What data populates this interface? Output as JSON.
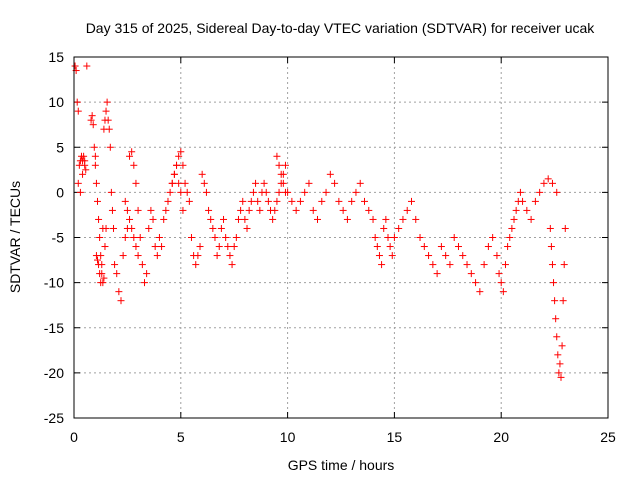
{
  "chart_data": {
    "type": "scatter",
    "title": "Day 315 of 2025, Sidereal Day-to-day VTEC variation (SDTVAR) for receiver ucak",
    "xlabel": "GPS time / hours",
    "ylabel": "SDTVAR / TECUs",
    "xlim": [
      0,
      25
    ],
    "ylim": [
      -25,
      15
    ],
    "xticks": [
      0,
      5,
      10,
      15,
      20,
      25
    ],
    "yticks": [
      15,
      10,
      5,
      0,
      -5,
      -10,
      -15,
      -20,
      -25
    ],
    "grid": true,
    "marker": "+",
    "marker_color": "#ff0000",
    "series": [
      {
        "name": "SDTVAR",
        "x": [
          0.05,
          0.1,
          0.15,
          0.2,
          0.25,
          0.3,
          0.35,
          0.4,
          0.45,
          0.5,
          0.55,
          0.6,
          0.2,
          0.3,
          0.4,
          0.5,
          0.8,
          0.85,
          0.9,
          0.95,
          1.0,
          1.05,
          1.1,
          1.15,
          1.2,
          1.25,
          1.3,
          1.35,
          1.4,
          1.45,
          1.5,
          1.55,
          1.6,
          1.65,
          1.7,
          1.75,
          1.8,
          1.85,
          1.9,
          1.0,
          1.05,
          1.1,
          1.15,
          1.2,
          1.25,
          1.3,
          1.35,
          1.4,
          1.45,
          1.5,
          2.0,
          2.1,
          2.2,
          2.3,
          2.4,
          2.5,
          2.6,
          2.7,
          2.8,
          2.9,
          3.0,
          3.1,
          3.2,
          3.3,
          3.4,
          3.5,
          3.6,
          3.7,
          3.8,
          3.9,
          2.4,
          2.5,
          2.6,
          2.7,
          2.8,
          2.9,
          3.0,
          4.0,
          4.1,
          4.2,
          4.3,
          4.4,
          4.5,
          4.6,
          4.7,
          4.8,
          4.9,
          5.0,
          5.1,
          5.2,
          5.3,
          5.4,
          5.5,
          5.6,
          5.7,
          5.8,
          5.9,
          4.6,
          4.7,
          4.8,
          4.9,
          5.0,
          5.1,
          6.0,
          6.1,
          6.2,
          6.3,
          6.4,
          6.5,
          6.6,
          6.7,
          6.8,
          6.9,
          7.0,
          7.1,
          7.2,
          7.3,
          7.4,
          7.5,
          7.6,
          7.7,
          7.8,
          7.9,
          8.0,
          8.1,
          8.2,
          8.3,
          8.4,
          8.5,
          8.6,
          8.7,
          8.8,
          8.9,
          9.0,
          9.1,
          9.2,
          9.3,
          9.4,
          9.5,
          9.6,
          9.7,
          9.8,
          9.9,
          9.5,
          9.6,
          9.7,
          9.8,
          9.9,
          10.0,
          10.2,
          10.4,
          10.6,
          10.8,
          11.0,
          11.2,
          11.4,
          11.6,
          11.8,
          12.0,
          12.2,
          12.4,
          12.6,
          12.8,
          13.0,
          13.2,
          13.4,
          13.6,
          13.8,
          14.0,
          14.1,
          14.2,
          14.3,
          14.4,
          14.5,
          14.6,
          14.7,
          14.8,
          14.9,
          15.0,
          15.2,
          15.4,
          15.6,
          15.8,
          16.0,
          16.2,
          16.4,
          16.6,
          16.8,
          17.0,
          17.2,
          17.4,
          17.6,
          17.8,
          18.0,
          18.2,
          18.4,
          18.6,
          18.8,
          19.0,
          19.2,
          19.4,
          19.6,
          19.8,
          19.9,
          20.0,
          20.1,
          20.2,
          20.3,
          20.4,
          20.5,
          20.6,
          20.7,
          20.8,
          20.9,
          21.0,
          21.2,
          21.4,
          21.6,
          21.8,
          22.0,
          22.2,
          22.4,
          22.6,
          22.3,
          22.35,
          22.4,
          22.45,
          22.5,
          22.55,
          22.6,
          22.65,
          22.7,
          22.75,
          22.8,
          22.85,
          22.9,
          22.95,
          23.0
        ],
        "y": [
          14,
          13.5,
          10,
          9,
          3,
          3.5,
          4,
          3.5,
          4,
          3,
          2.5,
          14,
          1,
          0,
          2,
          3.5,
          8,
          8.5,
          7.5,
          5,
          4,
          -7,
          -7.5,
          -8,
          -9,
          -10,
          -8,
          -4,
          7,
          8,
          9,
          10,
          8,
          7,
          5,
          0,
          -2,
          -4,
          -8,
          3,
          1,
          -1,
          -3,
          -5,
          -7,
          -9,
          -10,
          -9.5,
          -6,
          -4,
          -9,
          -11,
          -12,
          -7,
          -5,
          -4,
          4,
          4.5,
          3,
          1,
          -2,
          -5,
          -8,
          -10,
          -9,
          -4,
          -2,
          -3,
          -6,
          -7,
          -1,
          -2,
          -3,
          -4,
          -5,
          -6,
          -7,
          -5,
          -6,
          -3,
          -2,
          -1,
          0,
          1,
          2,
          3,
          4,
          4.5,
          3,
          1,
          0,
          -1,
          -5,
          -7,
          -8,
          -7,
          -6,
          1,
          2,
          3,
          1,
          0,
          -2,
          2,
          1,
          0,
          -2,
          -3,
          -4,
          -5,
          -7,
          -6,
          -4,
          -3,
          -5,
          -6,
          -7,
          -8,
          -6,
          -5,
          -3,
          -2,
          -1,
          -3,
          -4,
          -2,
          -1,
          0,
          1,
          -1,
          -2,
          0,
          1,
          0,
          -1,
          -2,
          -3,
          -2,
          -1,
          0,
          1,
          2,
          3,
          4,
          3,
          2,
          1,
          0,
          0,
          -1,
          -2,
          -1,
          0,
          1,
          -2,
          -3,
          -1,
          0,
          2,
          1,
          -1,
          -2,
          -3,
          -1,
          0,
          1,
          -1,
          -2,
          -3,
          -5,
          -6,
          -7,
          -8,
          -4,
          -3,
          -5,
          -6,
          -7,
          -5,
          -4,
          -3,
          -2,
          -1,
          -3,
          -5,
          -6,
          -7,
          -8,
          -9,
          -6,
          -7,
          -8,
          -5,
          -6,
          -7,
          -8,
          -9,
          -10,
          -11,
          -8,
          -6,
          -5,
          -7,
          -9,
          -10,
          -11,
          -8,
          -6,
          -5,
          -4,
          -3,
          -2,
          -1,
          0,
          -1,
          -2,
          -3,
          -1,
          0,
          1,
          1.5,
          1,
          0,
          -4,
          -6,
          -8,
          -10,
          -12,
          -14,
          -16,
          -18,
          -20,
          -19,
          -20.5,
          -17,
          -12,
          -8,
          -4
        ]
      }
    ]
  }
}
